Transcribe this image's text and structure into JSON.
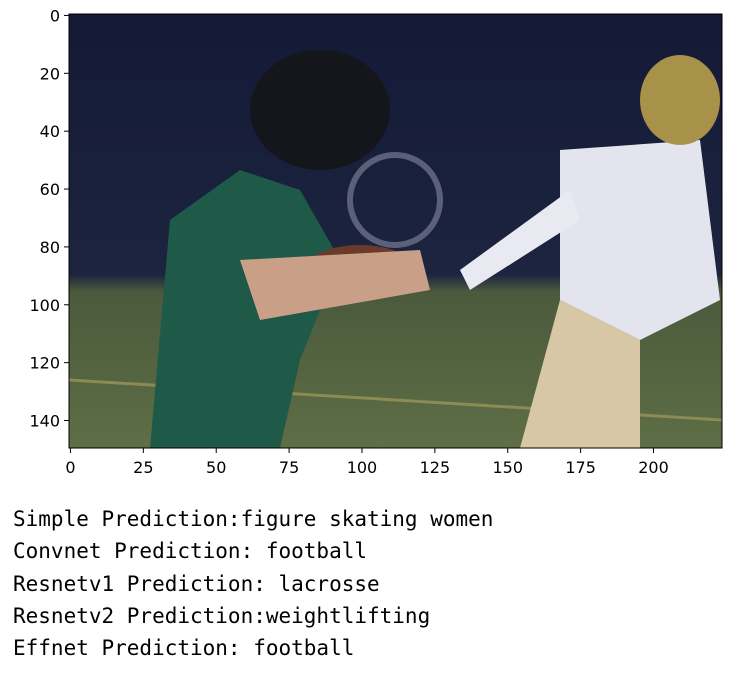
{
  "figure": {
    "xlim": [
      -0.5,
      223.5
    ],
    "ylim": [
      149.5,
      -0.5
    ],
    "xticks": [
      0,
      25,
      50,
      75,
      100,
      125,
      150,
      175,
      200
    ],
    "yticks": [
      0,
      20,
      40,
      60,
      80,
      100,
      120,
      140
    ]
  },
  "outputs": [
    "Simple Prediction:figure skating women",
    "Convnet Prediction: football",
    "Resnetv1 Prediction: lacrosse",
    "Resnetv2 Prediction:weightlifting",
    "Effnet Prediction: football"
  ]
}
